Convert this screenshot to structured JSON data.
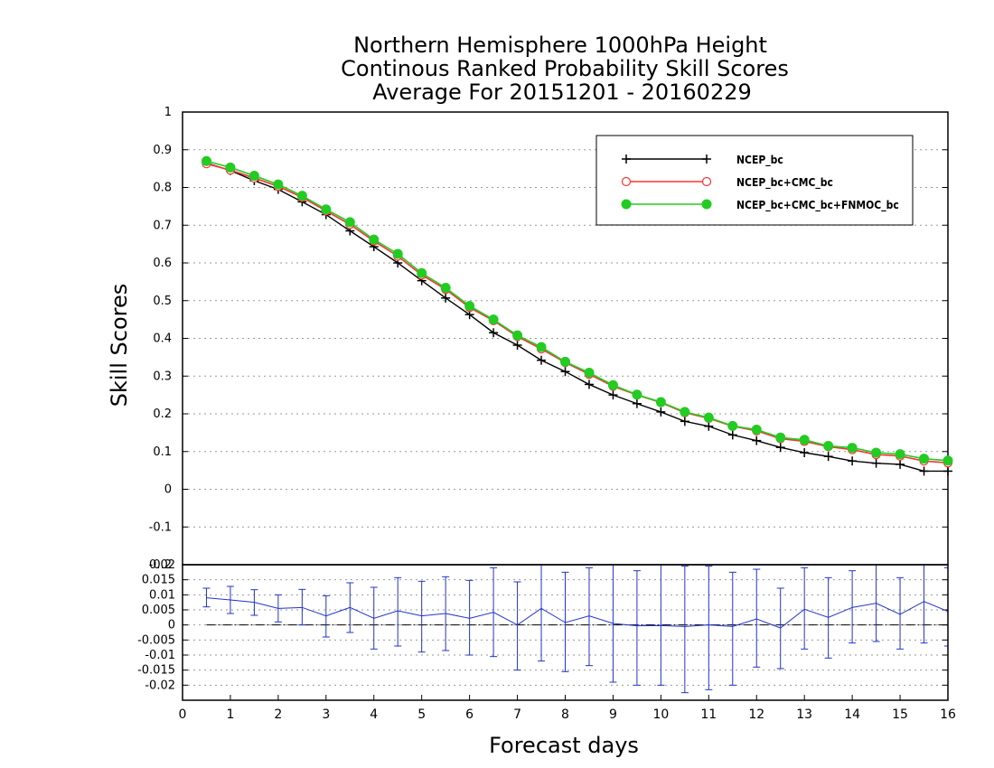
{
  "title_lines": [
    "Northern Hemisphere 1000hPa Height",
    "Continous Ranked Probability Skill Scores",
    "Average For 20151201 - 20160229"
  ],
  "chart_data": [
    {
      "type": "line",
      "xlabel": "",
      "ylabel": "Skill Scores",
      "xlim": [
        0,
        16
      ],
      "ylim": [
        -0.2,
        1
      ],
      "yticks": [
        "1",
        "0.9",
        "0.8",
        "0.7",
        "0.6",
        "0.5",
        "0.4",
        "0.3",
        "0.2",
        "0.1",
        "0",
        "-0.1",
        "-0.2"
      ],
      "grid": true,
      "legend_position": "top-right",
      "x": [
        0.5,
        1,
        1.5,
        2,
        2.5,
        3,
        3.5,
        4,
        4.5,
        5,
        5.5,
        6,
        6.5,
        7,
        7.5,
        8,
        8.5,
        9,
        9.5,
        10,
        10.5,
        11,
        11.5,
        12,
        12.5,
        13,
        13.5,
        14,
        14.5,
        15,
        15.5,
        16
      ],
      "series": [
        {
          "name": "NCEP_bc",
          "color": "#000000",
          "marker": "plus",
          "values": [
            0.865,
            0.845,
            0.818,
            0.795,
            0.762,
            0.728,
            0.685,
            0.643,
            0.6,
            0.553,
            0.507,
            0.463,
            0.415,
            0.382,
            0.342,
            0.312,
            0.278,
            0.25,
            0.227,
            0.205,
            0.18,
            0.167,
            0.144,
            0.129,
            0.111,
            0.097,
            0.087,
            0.075,
            0.069,
            0.066,
            0.048,
            0.048
          ]
        },
        {
          "name": "NCEP_bc+CMC_bc",
          "color": "#ff3333",
          "marker": "open-circle",
          "values": [
            0.863,
            0.846,
            0.825,
            0.803,
            0.774,
            0.738,
            0.702,
            0.658,
            0.618,
            0.568,
            0.53,
            0.482,
            0.447,
            0.405,
            0.372,
            0.336,
            0.305,
            0.273,
            0.25,
            0.23,
            0.203,
            0.188,
            0.167,
            0.155,
            0.134,
            0.127,
            0.113,
            0.105,
            0.092,
            0.088,
            0.075,
            0.07
          ]
        },
        {
          "name": "NCEP_bc+CMC_bc+FNMOC_bc",
          "color": "#22cc22",
          "marker": "filled-circle",
          "values": [
            0.87,
            0.853,
            0.831,
            0.808,
            0.778,
            0.742,
            0.708,
            0.662,
            0.624,
            0.573,
            0.534,
            0.486,
            0.45,
            0.408,
            0.377,
            0.338,
            0.309,
            0.276,
            0.251,
            0.231,
            0.205,
            0.19,
            0.168,
            0.158,
            0.137,
            0.131,
            0.115,
            0.11,
            0.097,
            0.093,
            0.081,
            0.076
          ]
        }
      ]
    },
    {
      "type": "line",
      "xlabel": "Forecast days",
      "ylabel": "",
      "xlim": [
        0,
        16
      ],
      "ylim": [
        -0.025,
        0.02
      ],
      "xticks": [
        "0",
        "1",
        "2",
        "3",
        "4",
        "5",
        "6",
        "7",
        "8",
        "9",
        "10",
        "11",
        "12",
        "13",
        "14",
        "15",
        "16"
      ],
      "yticks": [
        "0.02",
        "0.015",
        "0.01",
        "0.005",
        "0",
        "-0.005",
        "-0.01",
        "-0.015",
        "-0.02"
      ],
      "grid": true,
      "x": [
        0.5,
        1,
        1.5,
        2,
        2.5,
        3,
        3.5,
        4,
        4.5,
        5,
        5.5,
        6,
        6.5,
        7,
        7.5,
        8,
        8.5,
        9,
        9.5,
        10,
        10.5,
        11,
        11.5,
        12,
        12.5,
        13,
        13.5,
        14,
        14.5,
        15,
        15.5,
        16
      ],
      "series": [
        {
          "color": "#2233cc",
          "values": [
            0.009,
            0.0083,
            0.0075,
            0.0055,
            0.0058,
            0.003,
            0.0058,
            0.0022,
            0.0047,
            0.003,
            0.0038,
            0.0022,
            0.0042,
            0.0,
            0.0055,
            0.0008,
            0.003,
            0.0005,
            -0.0003,
            -0.0002,
            -0.0005,
            0.0,
            -0.0005,
            0.002,
            -0.001,
            0.0052,
            0.0025,
            0.0058,
            0.0072,
            0.0035,
            0.0078,
            0.0045
          ],
          "error_low": [
            0.006,
            0.0038,
            0.0032,
            0.001,
            0.0,
            -0.004,
            -0.0025,
            -0.008,
            -0.007,
            -0.009,
            -0.0085,
            -0.01,
            -0.0105,
            -0.015,
            -0.012,
            -0.0155,
            -0.0135,
            -0.019,
            -0.02,
            -0.02,
            -0.0225,
            -0.0215,
            -0.02,
            -0.014,
            -0.0145,
            -0.008,
            -0.011,
            -0.006,
            -0.0055,
            -0.008,
            -0.006,
            -0.007
          ],
          "error_high": [
            0.0122,
            0.0128,
            0.0117,
            0.01,
            0.0118,
            0.0097,
            0.014,
            0.0125,
            0.0157,
            0.0145,
            0.016,
            0.0148,
            0.019,
            0.0143,
            0.023,
            0.0175,
            0.019,
            0.0205,
            0.018,
            0.0205,
            0.0195,
            0.0195,
            0.0175,
            0.0185,
            0.0122,
            0.019,
            0.0157,
            0.018,
            0.02,
            0.0157,
            0.0215,
            0.019
          ]
        }
      ],
      "reference_line": 0
    }
  ]
}
